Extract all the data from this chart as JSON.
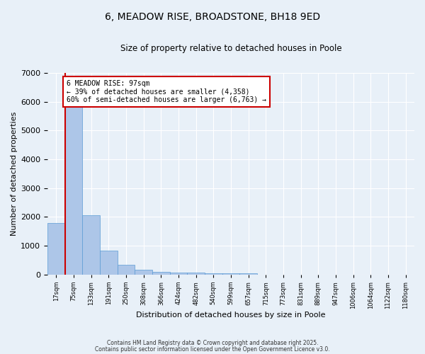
{
  "title": "6, MEADOW RISE, BROADSTONE, BH18 9ED",
  "subtitle": "Size of property relative to detached houses in Poole",
  "xlabel": "Distribution of detached houses by size in Poole",
  "ylabel": "Number of detached properties",
  "categories": [
    "17sqm",
    "75sqm",
    "133sqm",
    "191sqm",
    "250sqm",
    "308sqm",
    "366sqm",
    "424sqm",
    "482sqm",
    "540sqm",
    "599sqm",
    "657sqm",
    "715sqm",
    "773sqm",
    "831sqm",
    "889sqm",
    "947sqm",
    "1006sqm",
    "1064sqm",
    "1122sqm",
    "1180sqm"
  ],
  "values": [
    1780,
    5850,
    2060,
    820,
    340,
    175,
    105,
    80,
    60,
    50,
    45,
    40,
    0,
    0,
    0,
    0,
    0,
    0,
    0,
    0,
    0
  ],
  "bar_color": "#adc6e8",
  "bar_edge_color": "#5b9bd5",
  "vline_color": "#cc0000",
  "annotation_text": "6 MEADOW RISE: 97sqm\n← 39% of detached houses are smaller (4,358)\n60% of semi-detached houses are larger (6,763) →",
  "annotation_box_color": "#ffffff",
  "annotation_box_edge": "#cc0000",
  "ylim": [
    0,
    7000
  ],
  "yticks": [
    0,
    1000,
    2000,
    3000,
    4000,
    5000,
    6000,
    7000
  ],
  "background_color": "#e8f0f8",
  "footer1": "Contains HM Land Registry data © Crown copyright and database right 2025.",
  "footer2": "Contains public sector information licensed under the Open Government Licence v3.0."
}
